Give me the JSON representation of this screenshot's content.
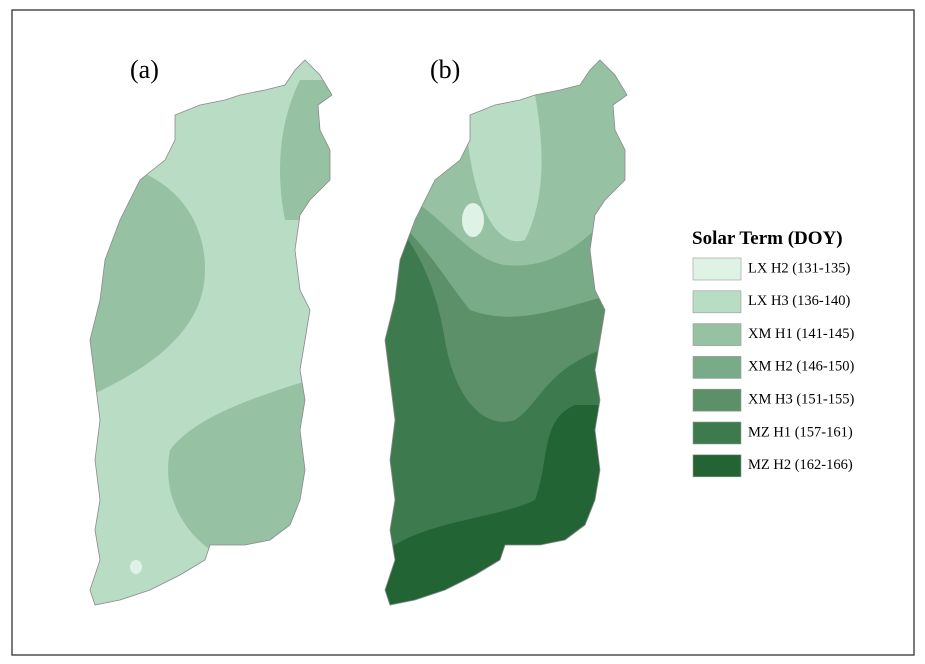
{
  "panels": [
    {
      "label": "(a)"
    },
    {
      "label": "(b)"
    }
  ],
  "legend": {
    "title": "Solar Term (DOY)",
    "items": [
      {
        "label": "LX H2 (131-135)",
        "color": "#dff2e6"
      },
      {
        "label": "LX H3 (136-140)",
        "color": "#b9dcc4"
      },
      {
        "label": "XM H1 (141-145)",
        "color": "#96c2a3"
      },
      {
        "label": "XM H2 (146-150)",
        "color": "#7aab88"
      },
      {
        "label": "XM H3 (151-155)",
        "color": "#5b9069"
      },
      {
        "label": "MZ H1 (157-161)",
        "color": "#3d7a4e"
      },
      {
        "label": "MZ H2 (162-166)",
        "color": "#236435"
      }
    ]
  }
}
